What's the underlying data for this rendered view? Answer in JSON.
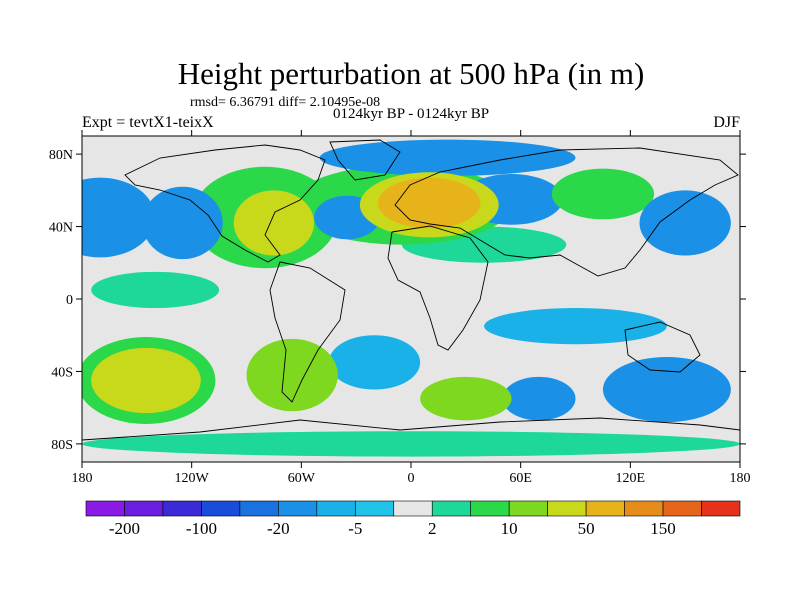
{
  "chart_data": {
    "type": "heatmap",
    "title": "Height perturbation at 500 hPa (in m)",
    "stats": "rmsd= 6.36791 diff= 2.10495e-08",
    "left_label": "Expt = tevtX1-teixX",
    "center_label": "0124kyr BP - 0124kyr BP",
    "right_label": "DJF",
    "x_ticks": [
      "180",
      "120W",
      "60W",
      "0",
      "60E",
      "120E",
      "180"
    ],
    "y_ticks": [
      "80N",
      "40N",
      "0",
      "40S",
      "80S"
    ],
    "x_range": [
      -180,
      180
    ],
    "y_range": [
      -90,
      90
    ],
    "y_tick_values": [
      80,
      40,
      0,
      -40,
      -80
    ],
    "colorbar": {
      "colors": [
        "#8c1ae6",
        "#6a1ee0",
        "#3a2ad8",
        "#1a4cdc",
        "#1a72e0",
        "#1a90e6",
        "#1ab0e8",
        "#20c4e8",
        "#e6e6e6",
        "#1ed89a",
        "#2ad84a",
        "#7ed820",
        "#c8d81a",
        "#e6b41a",
        "#e68c1a",
        "#e6641a",
        "#e6321a"
      ],
      "labels": [
        "-200",
        "-100",
        "-20",
        "-5",
        "2",
        "10",
        "50",
        "150"
      ]
    },
    "level_colors": {
      "-3": "#1a72e0",
      "-2": "#1a90e6",
      "-1": "#1ab0e8",
      "0": "#e6e6e6",
      "1": "#1ed89a",
      "2": "#2ad84a",
      "3": "#7ed820",
      "4": "#c8d81a",
      "5": "#e6b41a"
    },
    "anomalies": [
      {
        "lon": 10,
        "lat": 53,
        "rx": 28,
        "ry": 14,
        "level": 5,
        "name": "europe-positive"
      },
      {
        "lon": 10,
        "lat": 52,
        "rx": 38,
        "ry": 18,
        "level": 4,
        "name": "europe-core"
      },
      {
        "lon": -5,
        "lat": 52,
        "rx": 60,
        "ry": 22,
        "level": 2,
        "name": "atlantic-ridge"
      },
      {
        "lon": -75,
        "lat": 42,
        "rx": 22,
        "ry": 18,
        "level": 4,
        "name": "namerica-core"
      },
      {
        "lon": -80,
        "lat": 45,
        "rx": 40,
        "ry": 28,
        "level": 2,
        "name": "namerica-ridge"
      },
      {
        "lon": -170,
        "lat": 45,
        "rx": 30,
        "ry": 22,
        "level": -2,
        "name": "npacific-trough"
      },
      {
        "lon": -125,
        "lat": 42,
        "rx": 22,
        "ry": 20,
        "level": -2,
        "name": "west-coast-trough"
      },
      {
        "lon": -35,
        "lat": 45,
        "rx": 18,
        "ry": 12,
        "level": -2,
        "name": "atlantic-trough"
      },
      {
        "lon": 55,
        "lat": 55,
        "rx": 28,
        "ry": 14,
        "level": -2,
        "name": "urals-trough"
      },
      {
        "lon": 105,
        "lat": 58,
        "rx": 28,
        "ry": 14,
        "level": 2,
        "name": "siberia-ridge"
      },
      {
        "lon": 150,
        "lat": 42,
        "rx": 25,
        "ry": 18,
        "level": -2,
        "name": "japan-trough"
      },
      {
        "lon": 20,
        "lat": 78,
        "rx": 70,
        "ry": 10,
        "level": -2,
        "name": "arctic-trough"
      },
      {
        "lon": -140,
        "lat": 5,
        "rx": 35,
        "ry": 10,
        "level": 1,
        "name": "trop-pacific"
      },
      {
        "lon": 40,
        "lat": 30,
        "rx": 45,
        "ry": 10,
        "level": 1,
        "name": "mideast-band"
      },
      {
        "lon": 90,
        "lat": -15,
        "rx": 50,
        "ry": 10,
        "level": -1,
        "name": "indian-trough"
      },
      {
        "lon": 140,
        "lat": -50,
        "rx": 35,
        "ry": 18,
        "level": -2,
        "name": "aus-trough"
      },
      {
        "lon": -145,
        "lat": -45,
        "rx": 30,
        "ry": 18,
        "level": 4,
        "name": "spacific-ridge"
      },
      {
        "lon": -145,
        "lat": -45,
        "rx": 38,
        "ry": 24,
        "level": 2,
        "name": "spacific-outer"
      },
      {
        "lon": -65,
        "lat": -42,
        "rx": 25,
        "ry": 20,
        "level": 3,
        "name": "samerica-ridge"
      },
      {
        "lon": -20,
        "lat": -35,
        "rx": 25,
        "ry": 15,
        "level": -1,
        "name": "satlantic-trough"
      },
      {
        "lon": 30,
        "lat": -55,
        "rx": 25,
        "ry": 12,
        "level": 3,
        "name": "sindian-ridge"
      },
      {
        "lon": 70,
        "lat": -55,
        "rx": 20,
        "ry": 12,
        "level": -2,
        "name": "sindian-trough"
      },
      {
        "lon": 0,
        "lat": -80,
        "rx": 180,
        "ry": 7,
        "level": 1,
        "name": "antarctic-band"
      }
    ]
  }
}
